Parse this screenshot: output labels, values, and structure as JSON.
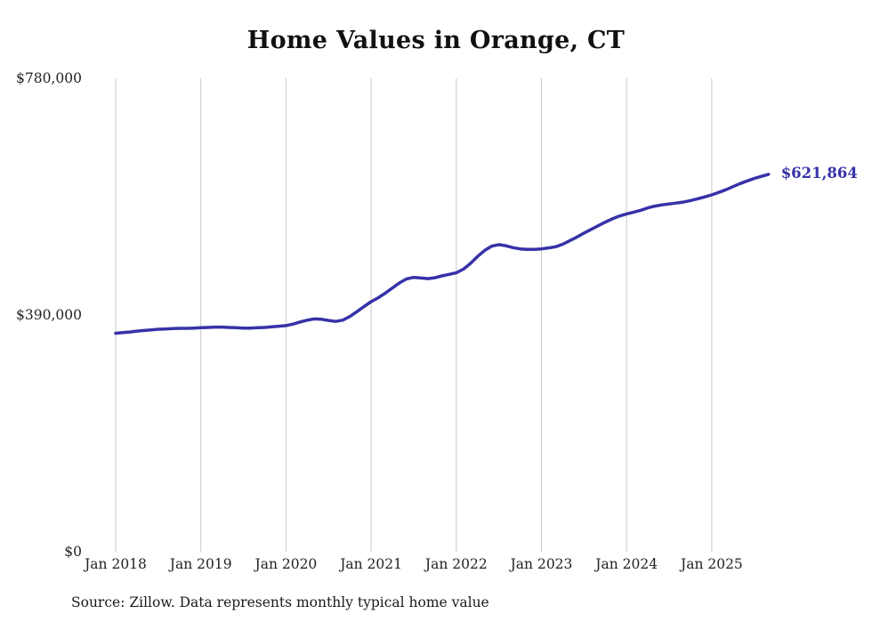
{
  "title": "Home Values in Orange, CT",
  "source_note": "Source: Zillow. Data represents monthly typical home value",
  "end_label": "$621,864",
  "colors": {
    "line": "#3632a8",
    "grid": "#c9c9c9",
    "text": "#222222"
  },
  "chart_data": {
    "type": "line",
    "title": "Home Values in Orange, CT",
    "ylabel": "",
    "xlabel": "",
    "ylim": [
      0,
      780000
    ],
    "grid": "vertical-only",
    "legend": "none",
    "y_ticks": [
      {
        "value": 0,
        "label": "$0"
      },
      {
        "value": 390000,
        "label": "$390,000"
      },
      {
        "value": 780000,
        "label": "$780,000"
      }
    ],
    "x_ticks": [
      "Jan 2018",
      "Jan 2019",
      "Jan 2020",
      "Jan 2021",
      "Jan 2022",
      "Jan 2023",
      "Jan 2024",
      "Jan 2025"
    ],
    "end_annotation": {
      "text": "$621,864",
      "value": 621864
    },
    "x": [
      "2018-01",
      "2018-02",
      "2018-03",
      "2018-04",
      "2018-05",
      "2018-06",
      "2018-07",
      "2018-08",
      "2018-09",
      "2018-10",
      "2018-11",
      "2018-12",
      "2019-01",
      "2019-02",
      "2019-03",
      "2019-04",
      "2019-05",
      "2019-06",
      "2019-07",
      "2019-08",
      "2019-09",
      "2019-10",
      "2019-11",
      "2019-12",
      "2020-01",
      "2020-02",
      "2020-03",
      "2020-04",
      "2020-05",
      "2020-06",
      "2020-07",
      "2020-08",
      "2020-09",
      "2020-10",
      "2020-11",
      "2020-12",
      "2021-01",
      "2021-02",
      "2021-03",
      "2021-04",
      "2021-05",
      "2021-06",
      "2021-07",
      "2021-08",
      "2021-09",
      "2021-10",
      "2021-11",
      "2021-12",
      "2022-01",
      "2022-02",
      "2022-03",
      "2022-04",
      "2022-05",
      "2022-06",
      "2022-07",
      "2022-08",
      "2022-09",
      "2022-10",
      "2022-11",
      "2022-12",
      "2023-01",
      "2023-02",
      "2023-03",
      "2023-04",
      "2023-05",
      "2023-06",
      "2023-07",
      "2023-08",
      "2023-09",
      "2023-10",
      "2023-11",
      "2023-12",
      "2024-01",
      "2024-02",
      "2024-03",
      "2024-04",
      "2024-05",
      "2024-06",
      "2024-07",
      "2024-08",
      "2024-09",
      "2024-10",
      "2024-11",
      "2024-12",
      "2025-01",
      "2025-02",
      "2025-03",
      "2025-04",
      "2025-05",
      "2025-06",
      "2025-07",
      "2025-08",
      "2025-09"
    ],
    "values": [
      360000,
      361000,
      362000,
      363500,
      364500,
      365500,
      366500,
      367000,
      367500,
      368000,
      368000,
      368500,
      369000,
      369500,
      370000,
      370000,
      369500,
      369000,
      368500,
      368500,
      369000,
      369500,
      370500,
      371500,
      372500,
      375000,
      378500,
      381500,
      383500,
      383000,
      381000,
      379500,
      381500,
      387500,
      395500,
      404000,
      412000,
      418500,
      426000,
      434500,
      443000,
      449500,
      452000,
      451000,
      450000,
      451500,
      454500,
      457000,
      459500,
      465500,
      475000,
      486500,
      496500,
      503500,
      506000,
      504000,
      501000,
      499000,
      498000,
      498000,
      499000,
      500500,
      502500,
      506500,
      512500,
      518500,
      525000,
      531000,
      537000,
      543000,
      548500,
      553000,
      556500,
      559500,
      562500,
      566500,
      569500,
      571500,
      573000,
      574500,
      576000,
      578500,
      581500,
      584500,
      588000,
      592000,
      596500,
      601500,
      606500,
      611000,
      615000,
      618500,
      621864
    ]
  }
}
